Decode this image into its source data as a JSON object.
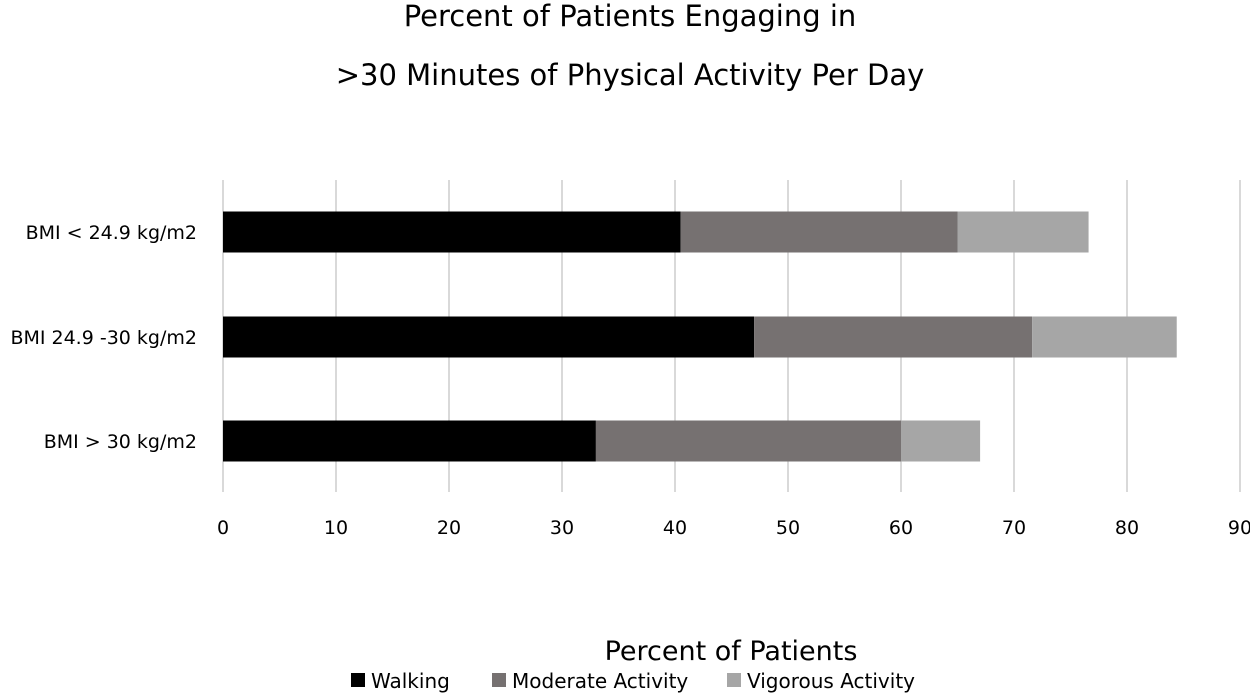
{
  "chart_data": {
    "type": "bar",
    "orientation": "horizontal",
    "stacked": true,
    "title_lines": [
      "Percent of Patients Engaging in",
      ">30 Minutes of Physical Activity Per Day"
    ],
    "xlabel": "Percent of Patients",
    "ylabel": "",
    "categories": [
      "BMI < 24.9 kg/m2",
      "BMI 24.9 -30 kg/m2",
      "BMI > 30 kg/m2"
    ],
    "series": [
      {
        "name": "Walking",
        "color": "#000000",
        "values": [
          40.5,
          47,
          33
        ]
      },
      {
        "name": "Moderate Activity",
        "color": "#767171",
        "values": [
          24.5,
          24.6,
          27
        ]
      },
      {
        "name": "Vigorous Activity",
        "color": "#a6a6a6",
        "values": [
          11.6,
          12.8,
          7
        ]
      }
    ],
    "xlim": [
      0,
      90
    ],
    "xticks": [
      0,
      10,
      20,
      30,
      40,
      50,
      60,
      70,
      80,
      90
    ],
    "grid": true,
    "legend_position": "bottom"
  }
}
